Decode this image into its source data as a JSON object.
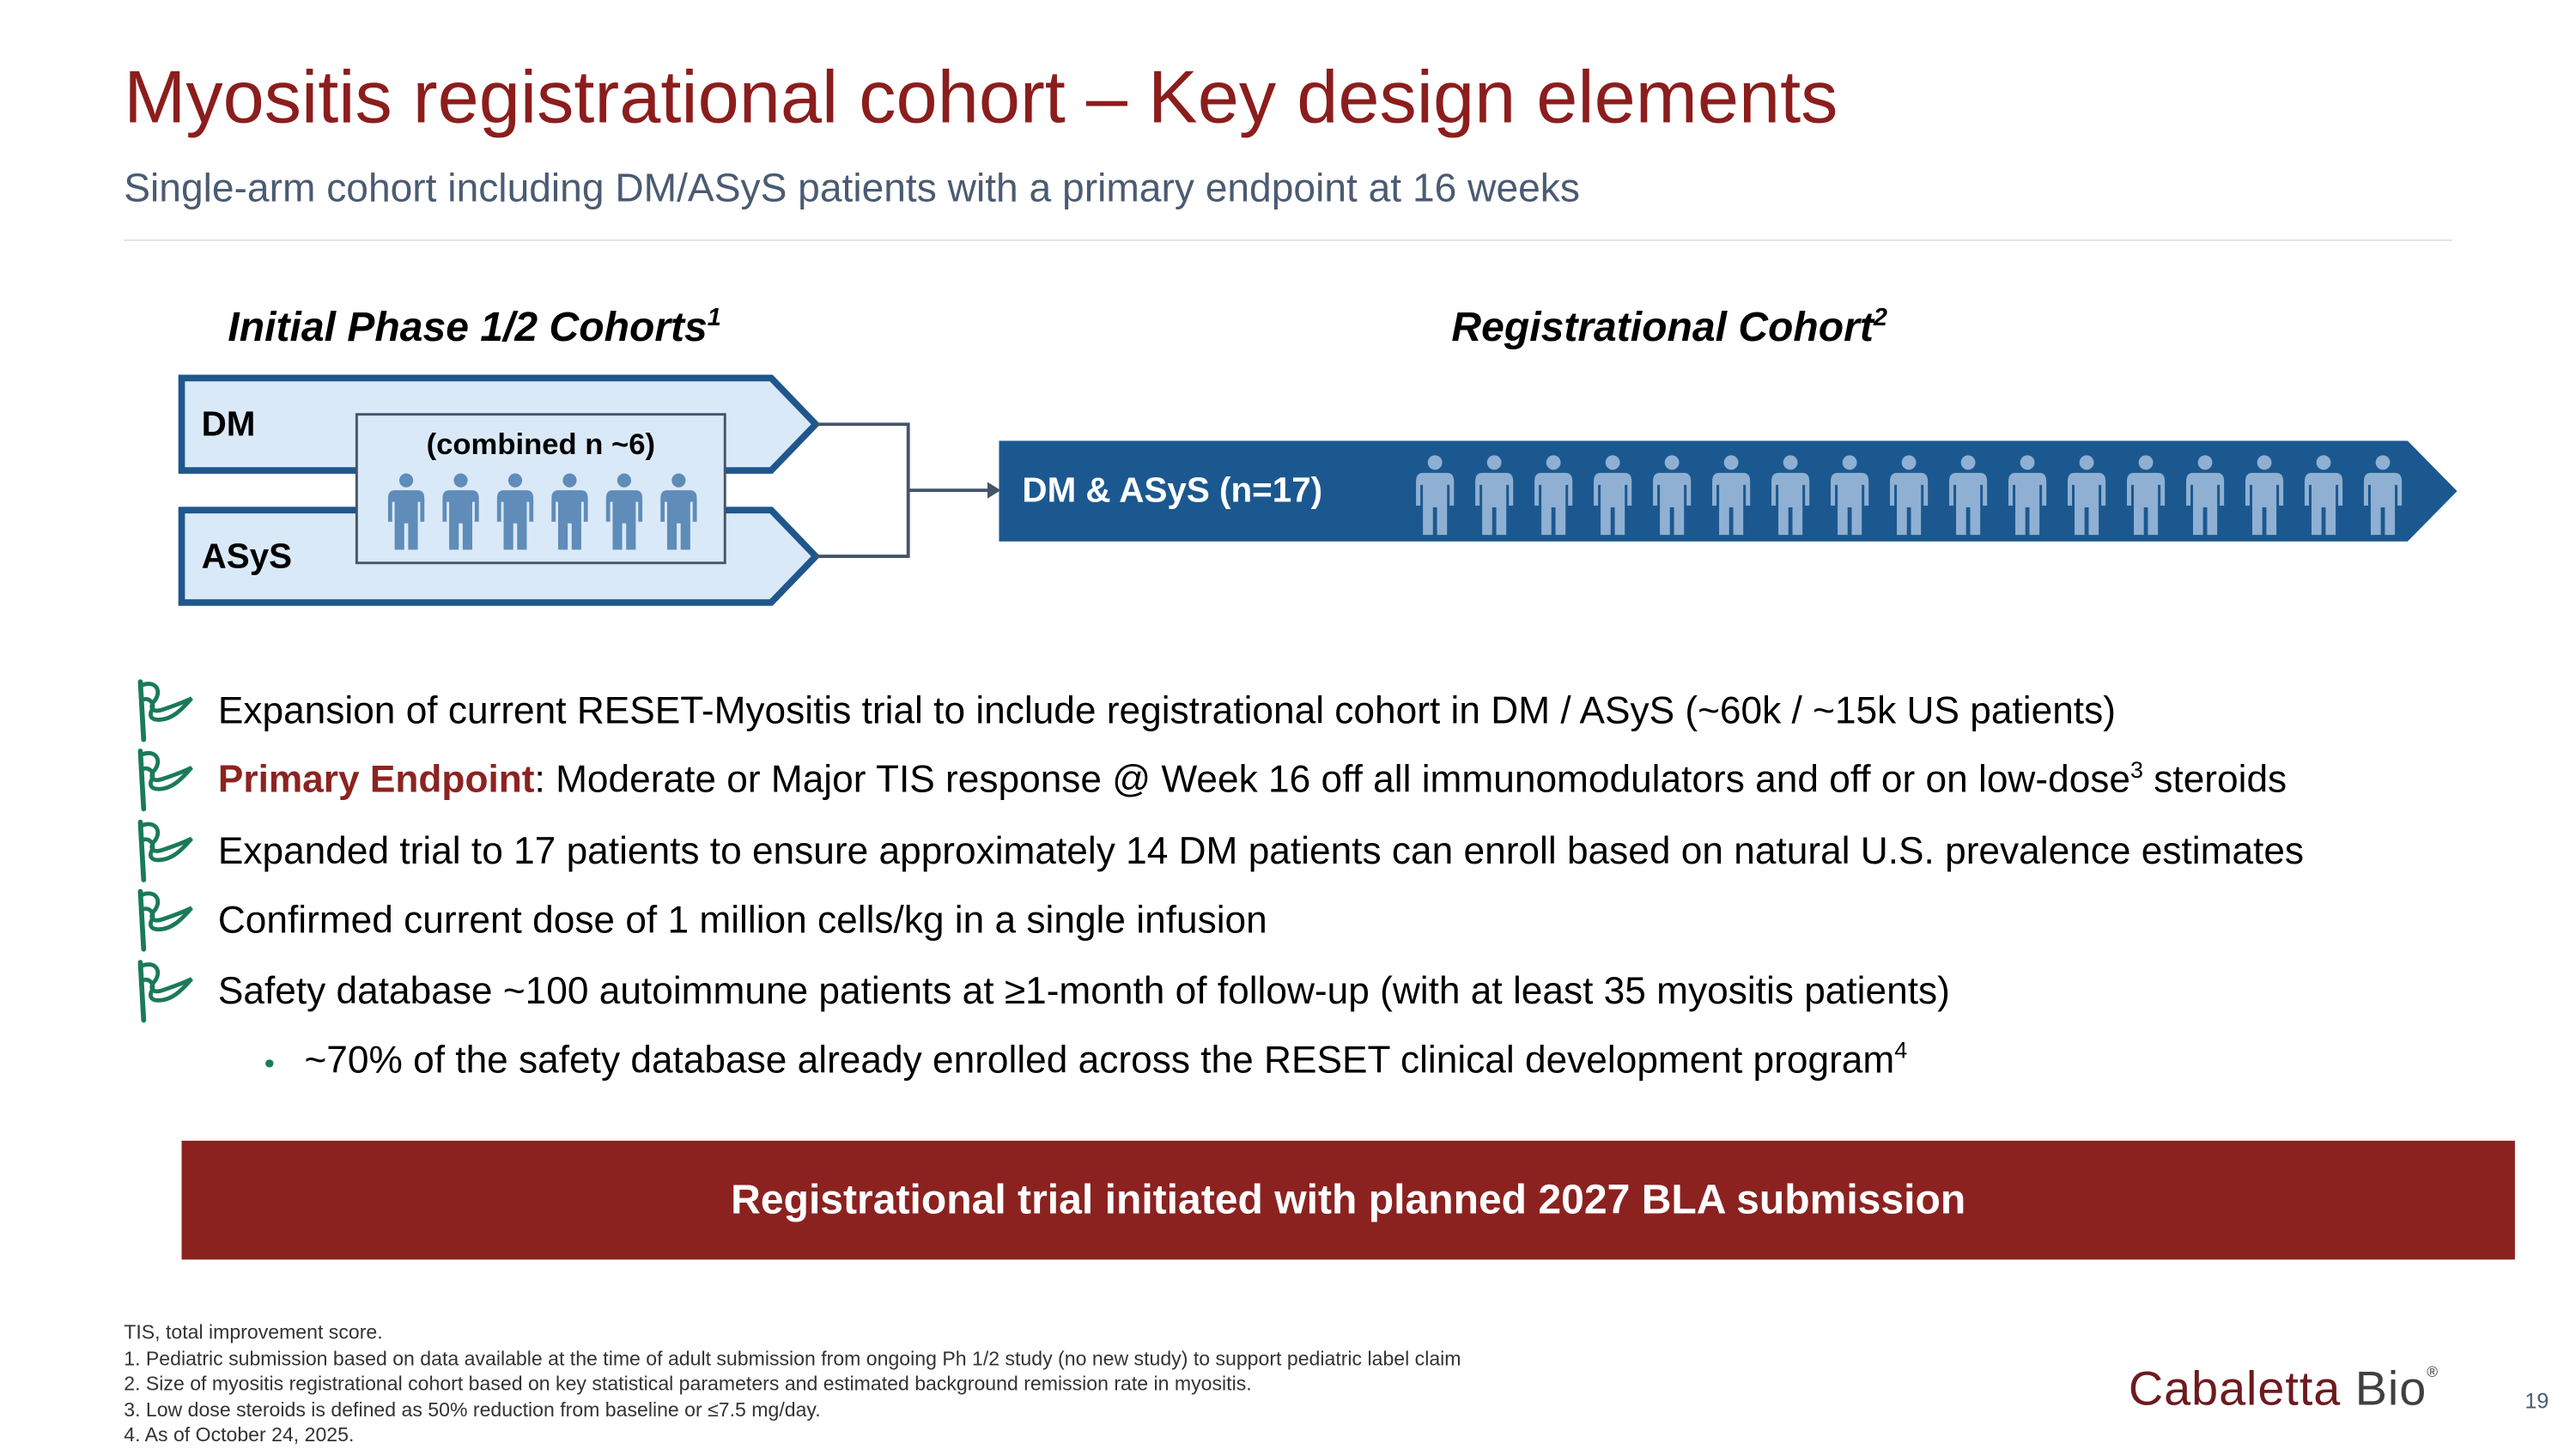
{
  "header": {
    "title": "Myositis registrational cohort – Key design elements",
    "subtitle": "Single-arm cohort including DM/ASyS patients with a primary endpoint at 16 weeks"
  },
  "diagram": {
    "initial": {
      "heading": "Initial Phase 1/2 Cohorts",
      "heading_sup": "1",
      "arm1": "DM",
      "arm2": "ASyS",
      "combined": "(combined n ~6)",
      "person_count": 6
    },
    "registrational": {
      "heading": "Registrational Cohort",
      "heading_sup": "2",
      "label": "DM & ASyS (n=17)",
      "person_count": 17
    },
    "colors": {
      "arm_fill": "#dae9f8",
      "arm_stroke": "#1f568c",
      "reg_fill": "#1c5890",
      "person_dark": "#5f8cb8",
      "person_light": "#8fb0d2"
    }
  },
  "bullets": [
    {
      "icon": "flag-icon",
      "text": "Expansion of current RESET-Myositis trial to include registrational cohort in DM / ASyS (~60k / ~15k US patients)"
    },
    {
      "icon": "flag-icon",
      "highlight": "Primary Endpoint",
      "text": ": Moderate or Major TIS response @ Week 16 off all immunomodulators and off or on low-dose",
      "sup": "3",
      "text_after": " steroids"
    },
    {
      "icon": "flag-icon",
      "text": "Expanded trial to 17 patients to ensure approximately 14 DM patients can enroll based on natural U.S. prevalence estimates"
    },
    {
      "icon": "flag-icon",
      "text": "Confirmed current dose of 1 million cells/kg in a single infusion"
    },
    {
      "icon": "flag-icon",
      "text": "Safety database ~100 autoimmune patients at ≥1-month of follow-up (with at least 35 myositis patients)"
    }
  ],
  "sub_bullet": {
    "bullet": "•",
    "text": "~70% of the safety database already enrolled across the RESET clinical development program",
    "sup": "4"
  },
  "banner": "Registrational trial initiated with planned 2027 BLA submission",
  "footnotes": [
    "TIS, total improvement score.",
    "1. Pediatric submission based on data available at the time of adult submission from ongoing Ph 1/2  study (no new study) to support pediatric label claim",
    "2. Size of myositis registrational cohort based on key statistical parameters and estimated background remission rate in myositis.",
    "3. Low dose steroids is defined as 50% reduction from baseline or ≤7.5 mg/day.",
    "4. As of October 24, 2025."
  ],
  "logo": {
    "part1": "Cabaletta",
    "part2": "Bio",
    "mark": "®"
  },
  "page_number": "19"
}
